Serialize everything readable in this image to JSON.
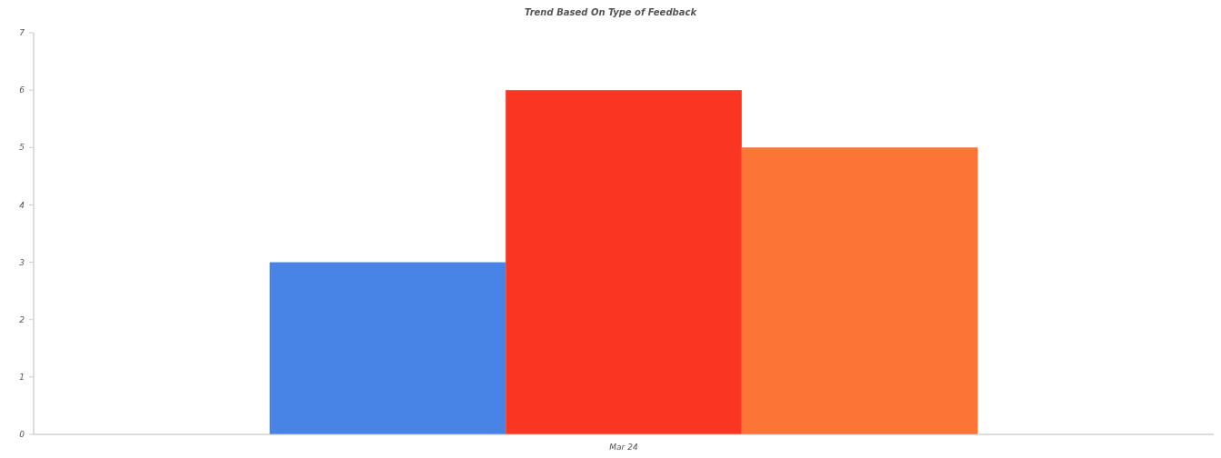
{
  "chart_data": {
    "type": "bar",
    "title": "Trend Based On Type of Feedback",
    "categories": [
      "Mar 24"
    ],
    "series": [
      {
        "color": "#4884e6",
        "values": [
          3
        ]
      },
      {
        "color": "#fa3521",
        "values": [
          6
        ]
      },
      {
        "color": "#fd7536",
        "values": [
          5
        ]
      }
    ],
    "ylim": [
      0,
      7
    ],
    "yticks": [
      0,
      1,
      2,
      3,
      4,
      5,
      6,
      7
    ],
    "grid": false
  }
}
